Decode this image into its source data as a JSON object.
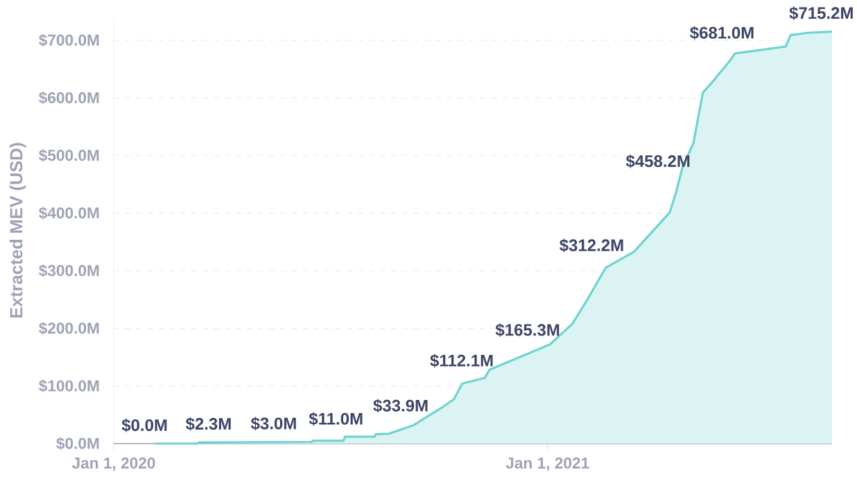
{
  "chart_data": {
    "type": "area",
    "ylabel": "Extracted MEV (USD)",
    "xlim": [
      "2020-01-01",
      "2021-08-29"
    ],
    "xticks": [
      {
        "value": "2020-01-01",
        "label": "Jan 1, 2020"
      },
      {
        "value": "2021-01-01",
        "label": "Jan 1, 2021"
      }
    ],
    "ylim": [
      0,
      740
    ],
    "yticks": [
      {
        "value": 0,
        "label": "$0.0M"
      },
      {
        "value": 100,
        "label": "$100.0M"
      },
      {
        "value": 200,
        "label": "$200.0M"
      },
      {
        "value": 300,
        "label": "$300.0M"
      },
      {
        "value": 400,
        "label": "$400.0M"
      },
      {
        "value": 500,
        "label": "$500.0M"
      },
      {
        "value": 600,
        "label": "$600.0M"
      },
      {
        "value": 700,
        "label": "$700.0M"
      }
    ],
    "grid": "y",
    "x": [
      "2020-02-05",
      "2020-03-12",
      "2020-03-13",
      "2020-06-16",
      "2020-06-17",
      "2020-07-13",
      "2020-07-14",
      "2020-08-08",
      "2020-08-09",
      "2020-08-20",
      "2020-09-10",
      "2020-09-24",
      "2020-10-05",
      "2020-10-14",
      "2020-10-21",
      "2020-11-09",
      "2020-11-13",
      "2020-12-06",
      "2021-01-03",
      "2021-01-22",
      "2021-02-03",
      "2021-02-19",
      "2021-03-15",
      "2021-04-07",
      "2021-04-14",
      "2021-04-19",
      "2021-04-25",
      "2021-05-04",
      "2021-05-12",
      "2021-05-19",
      "2021-05-27",
      "2021-06-04",
      "2021-06-08",
      "2021-07-21",
      "2021-07-25",
      "2021-08-09",
      "2021-08-29"
    ],
    "series": [
      {
        "color": "#6fd3cf",
        "values": [
          0,
          0,
          2,
          3,
          5,
          5,
          12,
          12,
          16,
          17,
          32,
          50,
          64,
          77,
          104,
          114,
          128,
          148,
          172,
          208,
          248,
          305,
          333,
          385,
          401,
          433,
          481,
          521,
          609,
          625,
          645,
          665,
          677,
          689,
          709,
          713,
          715
        ]
      }
    ],
    "annotations": [
      {
        "text": "$0.0M",
        "x": "2020-02-05",
        "y": 0
      },
      {
        "text": "$2.3M",
        "x": "2020-03-30",
        "y": 2.3
      },
      {
        "text": "$3.0M",
        "x": "2020-05-24",
        "y": 3
      },
      {
        "text": "$11.0M",
        "x": "2020-07-19",
        "y": 11
      },
      {
        "text": "$33.9M",
        "x": "2020-09-12",
        "y": 33.9
      },
      {
        "text": "$112.1M",
        "x": "2020-11-06",
        "y": 112.1
      },
      {
        "text": "$165.3M",
        "x": "2021-01-01",
        "y": 165.3
      },
      {
        "text": "$312.2M",
        "x": "2021-02-24",
        "y": 312.2
      },
      {
        "text": "$458.2M",
        "x": "2021-04-21",
        "y": 458.2
      },
      {
        "text": "$681.0M",
        "x": "2021-06-14",
        "y": 681
      },
      {
        "text": "$715.2M",
        "x": "2021-08-29",
        "y": 715.2
      }
    ]
  }
}
